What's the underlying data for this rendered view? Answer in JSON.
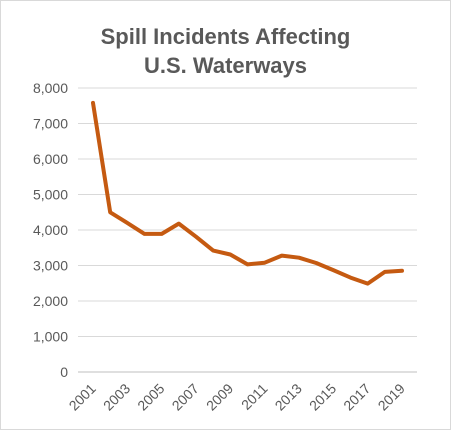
{
  "chart_data": {
    "type": "line",
    "title_lines": [
      "Spill Incidents Affecting",
      "U.S. Waterways"
    ],
    "xlabel": "",
    "ylabel": "",
    "x": [
      2001,
      2002,
      2003,
      2004,
      2005,
      2006,
      2007,
      2008,
      2009,
      2010,
      2011,
      2012,
      2013,
      2014,
      2015,
      2016,
      2017,
      2018,
      2019
    ],
    "x_tick_labels": [
      "2001",
      "2003",
      "2005",
      "2007",
      "2009",
      "2011",
      "2013",
      "2015",
      "2017",
      "2019"
    ],
    "x_tick_values": [
      2001,
      2003,
      2005,
      2007,
      2009,
      2011,
      2013,
      2015,
      2017,
      2019
    ],
    "y_tick_labels": [
      "0",
      "1,000",
      "2,000",
      "3,000",
      "4,000",
      "5,000",
      "6,000",
      "7,000",
      "8,000"
    ],
    "y_tick_values": [
      0,
      1000,
      2000,
      3000,
      4000,
      5000,
      6000,
      7000,
      8000
    ],
    "ylim": [
      0,
      8000
    ],
    "xlim": [
      2001,
      2019
    ],
    "series": [
      {
        "values": [
          7580,
          4500,
          4200,
          3890,
          3890,
          4180,
          3810,
          3420,
          3310,
          3030,
          3080,
          3280,
          3220,
          3070,
          2870,
          2660,
          2490,
          2820,
          2850
        ],
        "color": "#c55a11"
      }
    ],
    "gridlines": "horizontal",
    "legend": "none"
  }
}
